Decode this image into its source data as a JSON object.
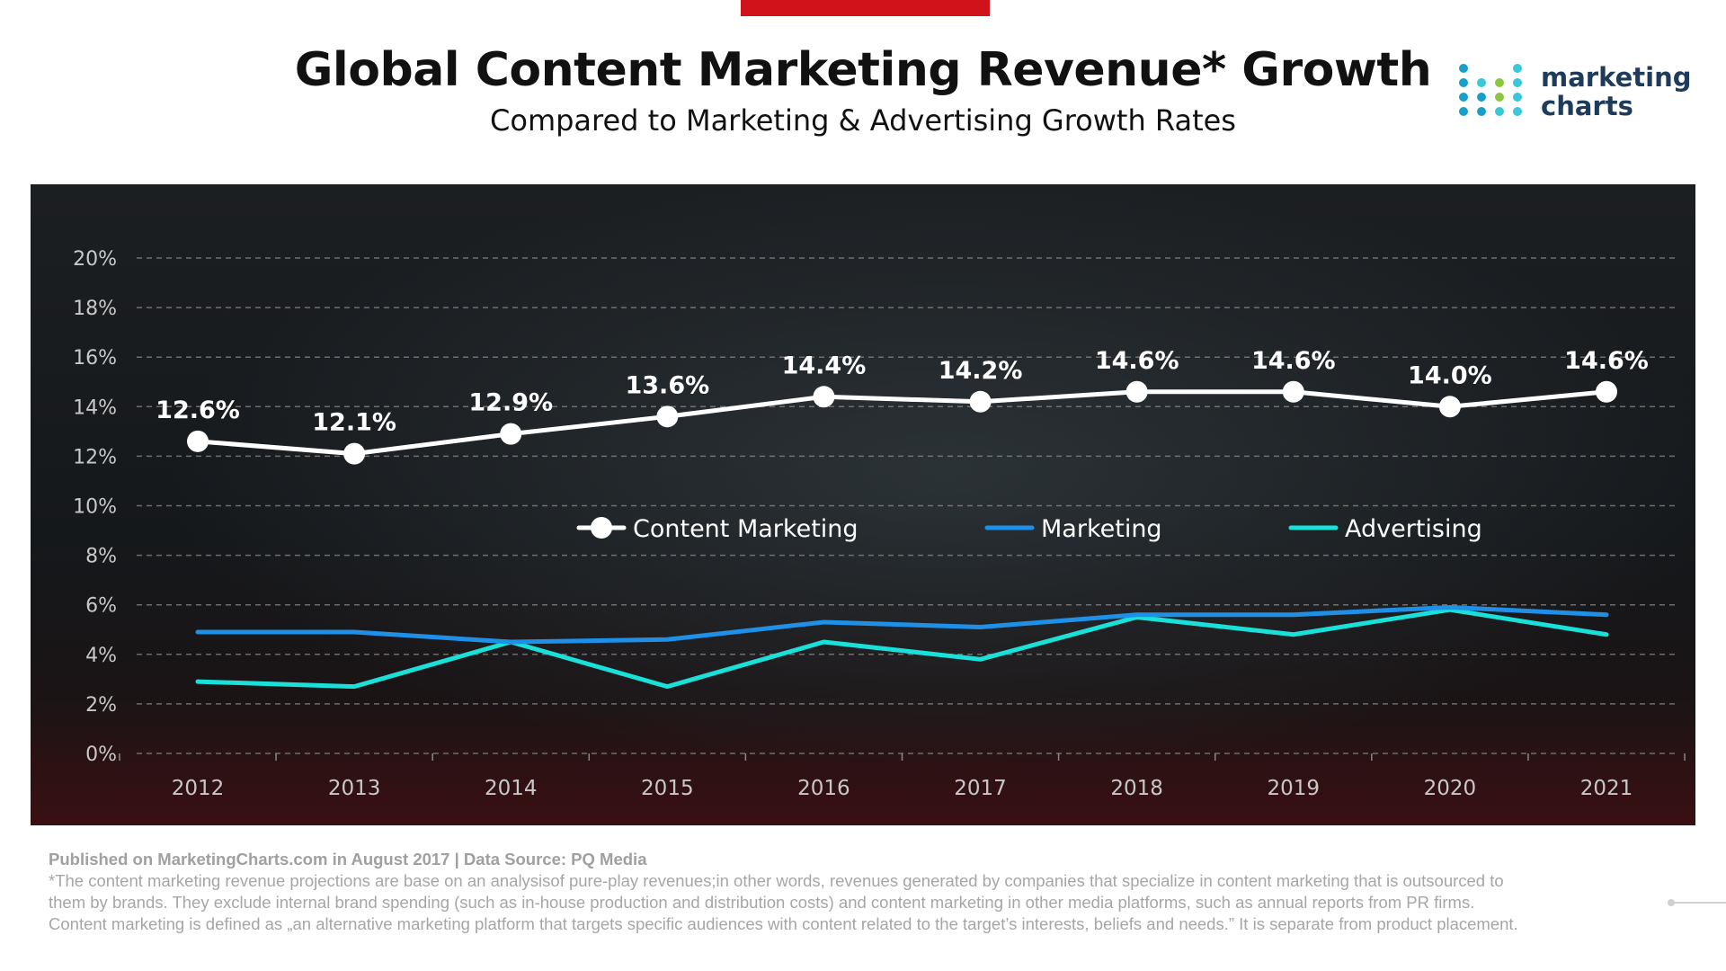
{
  "title": "Global Content Marketing Revenue* Growth",
  "subtitle": "Compared to Marketing & Advertising Growth Rates",
  "logo": {
    "line1": "marketing",
    "line2": "charts"
  },
  "footer": {
    "published": "Published on MarketingCharts.com in August 2017 | Data Source: PQ Media",
    "note_line1": "*The content marketing revenue projections are base on an analysisof pure-play revenues;in other words, revenues generated by companies that specialize in content marketing that is outsourced to",
    "note_line2": "them by brands. They exclude internal brand spending (such as in-house production and distribution costs) and content marketing in other media platforms, such as annual reports from PR firms.",
    "note_line3": "Content marketing is defined as „an alternative marketing platform that targets specific audiences with content related to the target’s interests, beliefs and needs.” It is separate from product placement."
  },
  "colors": {
    "accent": "#d0121b",
    "content_marketing": "#ffffff",
    "marketing": "#1e90e8",
    "advertising": "#19e0d8",
    "axis_text": "#c8c8c8",
    "grid": "#8a8a8a"
  },
  "chart_data": {
    "type": "line",
    "categories": [
      "2012",
      "2013",
      "2014",
      "2015",
      "2016",
      "2017",
      "2018",
      "2019",
      "2020",
      "2021"
    ],
    "y_ticks": [
      "0%",
      "2%",
      "4%",
      "6%",
      "8%",
      "10%",
      "12%",
      "14%",
      "16%",
      "18%",
      "20%"
    ],
    "ylim": [
      0,
      20
    ],
    "grid": true,
    "legend_position": "center",
    "series": [
      {
        "name": "Content Marketing",
        "values": [
          12.6,
          12.1,
          12.9,
          13.6,
          14.4,
          14.2,
          14.6,
          14.6,
          14.0,
          14.6
        ],
        "labels": [
          "12.6%",
          "12.1%",
          "12.9%",
          "13.6%",
          "14.4%",
          "14.2%",
          "14.6%",
          "14.6%",
          "14.0%",
          "14.6%"
        ],
        "color": "#ffffff",
        "markers": true
      },
      {
        "name": "Marketing",
        "values": [
          4.9,
          4.9,
          4.5,
          4.6,
          5.3,
          5.1,
          5.6,
          5.6,
          5.9,
          5.6
        ],
        "color": "#1e90e8",
        "markers": false
      },
      {
        "name": "Advertising",
        "values": [
          2.9,
          2.7,
          4.5,
          2.7,
          4.5,
          3.8,
          5.5,
          4.8,
          5.8,
          4.8
        ],
        "color": "#19e0d8",
        "markers": false
      }
    ]
  }
}
